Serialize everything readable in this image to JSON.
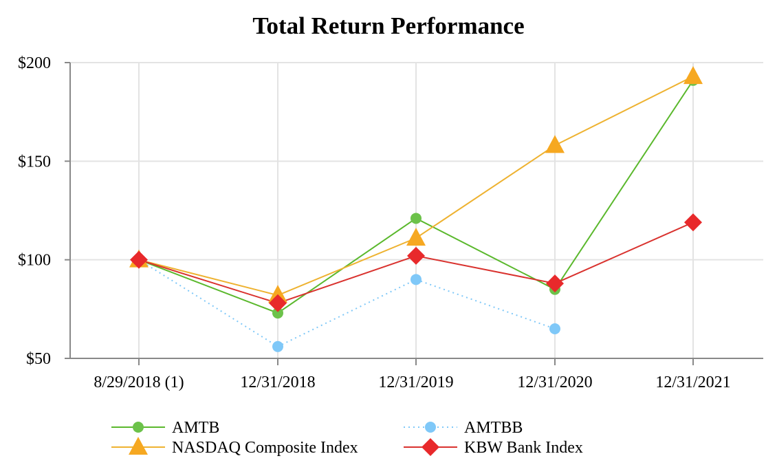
{
  "chart_data": {
    "type": "line",
    "title": "Total Return Performance",
    "xlabel": "",
    "ylabel": "",
    "categories": [
      "8/29/2018 (1)",
      "12/31/2018",
      "12/31/2019",
      "12/31/2020",
      "12/31/2021"
    ],
    "y_ticks": [
      50,
      100,
      150,
      200
    ],
    "y_tick_labels": [
      "$50",
      "$100",
      "$150",
      "$200"
    ],
    "ylim": [
      50,
      200
    ],
    "grid": true,
    "legend_position": "bottom",
    "series": [
      {
        "name": "AMTB",
        "values": [
          100,
          73,
          121,
          85,
          191
        ],
        "color": "#6cc24a",
        "line_color": "#5ab82c",
        "marker": "circle",
        "line_style": "solid"
      },
      {
        "name": "AMTBB",
        "values": [
          100,
          56,
          90,
          65,
          null
        ],
        "color": "#7fc8f8",
        "line_color": "#7fc8f8",
        "marker": "circle",
        "line_style": "dotted"
      },
      {
        "name": "NASDAQ Composite Index",
        "values": [
          100,
          82,
          111,
          158,
          193
        ],
        "color": "#f6a821",
        "line_color": "#eeb230",
        "marker": "triangle",
        "line_style": "solid"
      },
      {
        "name": "KBW Bank Index",
        "values": [
          100,
          78,
          102,
          88,
          119
        ],
        "color": "#e8292b",
        "line_color": "#d9322e",
        "marker": "diamond",
        "line_style": "solid"
      }
    ]
  }
}
